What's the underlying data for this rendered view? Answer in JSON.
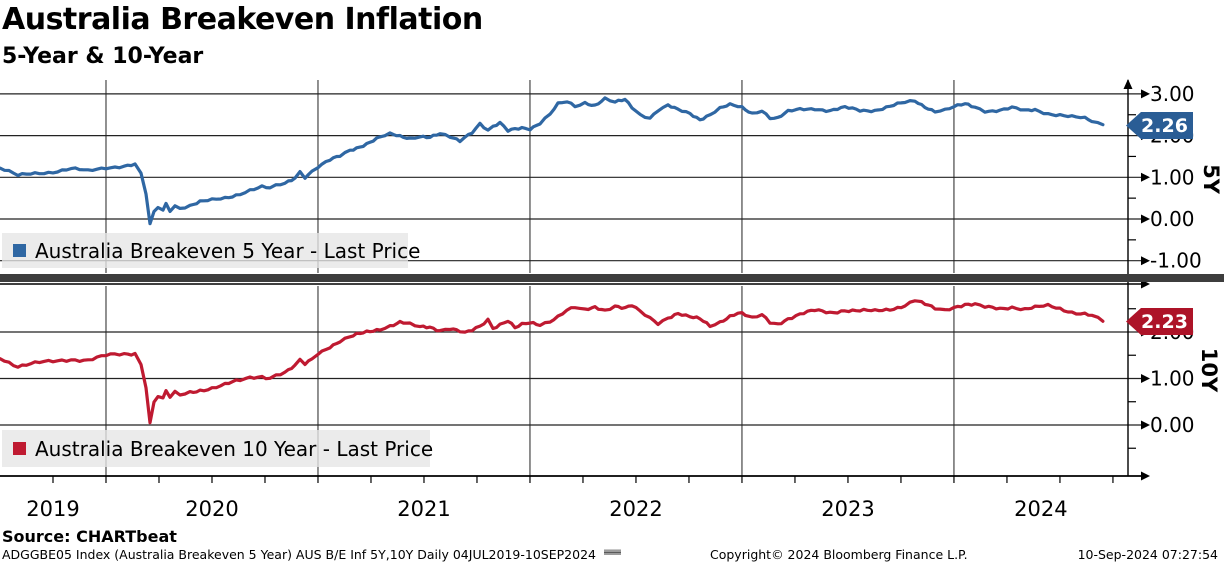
{
  "header": {
    "title": "Australia Breakeven Inflation",
    "subtitle": "5-Year & 10-Year"
  },
  "source_line": "Source: CHARTbeat",
  "footer": {
    "left": "ADGGBE05 Index (Australia Breakeven 5 Year) AUS B/E Inf 5Y,10Y  Daily 04JUL2019-10SEP2024",
    "center": "Copyright© 2024 Bloomberg Finance L.P.",
    "right": "10-Sep-2024 07:27:54"
  },
  "colors": {
    "blue_line": "#2f67a3",
    "blue_badge": "#2a5d95",
    "red_line": "#bf1a31",
    "red_badge": "#ad1328",
    "grid": "#222222",
    "axis": "#000000",
    "divider": "#3d3d3d",
    "legend_bg": "#e6e6e6"
  },
  "x_axis": {
    "xlim": [
      2019.5,
      2024.821
    ],
    "gridline_years": [
      2020,
      2021,
      2022,
      2023,
      2024
    ],
    "minor_step": 0.25,
    "labels": [
      {
        "text": "2019",
        "x": 2019.75
      },
      {
        "text": "2020",
        "x": 2020.5
      },
      {
        "text": "2021",
        "x": 2021.5
      },
      {
        "text": "2022",
        "x": 2022.5
      },
      {
        "text": "2023",
        "x": 2023.5
      },
      {
        "text": "2024",
        "x": 2024.41
      }
    ]
  },
  "chart_data": [
    {
      "type": "line",
      "panel_label": "5Y",
      "legend": "Australia Breakeven 5 Year - Last Price",
      "last_price": "2.26",
      "line_color": "#2f67a3",
      "badge_color": "#2a5d95",
      "ylim": [
        -1.295,
        3.333
      ],
      "ymajor": [
        3,
        2,
        1,
        0,
        -1
      ],
      "ytick_labels": [
        "3.00",
        "2.00",
        "1.00",
        "0.00",
        "-1.00"
      ],
      "yminor": [
        2.5,
        1.5,
        0.5,
        -0.5
      ],
      "points": [
        [
          2019.5,
          1.22
        ],
        [
          2019.5849,
          1.03
        ],
        [
          2019.6651,
          1.1
        ],
        [
          2019.75,
          1.14
        ],
        [
          2019.8349,
          1.2
        ],
        [
          2019.9151,
          1.14
        ],
        [
          2020.0,
          1.24
        ],
        [
          2020.0849,
          1.28
        ],
        [
          2020.1368,
          1.3
        ],
        [
          2020.1651,
          1.1
        ],
        [
          2020.1887,
          0.6
        ],
        [
          2020.2075,
          -0.15
        ],
        [
          2020.2264,
          0.15
        ],
        [
          2020.2453,
          0.28
        ],
        [
          2020.2689,
          0.2
        ],
        [
          2020.283,
          0.38
        ],
        [
          2020.3019,
          0.22
        ],
        [
          2020.3255,
          0.33
        ],
        [
          2020.3491,
          0.28
        ],
        [
          2020.3962,
          0.33
        ],
        [
          2020.4434,
          0.4
        ],
        [
          2020.5,
          0.44
        ],
        [
          2020.5613,
          0.5
        ],
        [
          2020.6321,
          0.62
        ],
        [
          2020.6792,
          0.7
        ],
        [
          2020.7358,
          0.76
        ],
        [
          2020.7736,
          0.72
        ],
        [
          2020.8019,
          0.78
        ],
        [
          2020.8443,
          0.85
        ],
        [
          2020.8915,
          1.0
        ],
        [
          2020.9151,
          1.15
        ],
        [
          2020.9387,
          1.02
        ],
        [
          2020.9717,
          1.15
        ],
        [
          2021.0,
          1.25
        ],
        [
          2021.0566,
          1.4
        ],
        [
          2021.1038,
          1.5
        ],
        [
          2021.1509,
          1.65
        ],
        [
          2021.1981,
          1.75
        ],
        [
          2021.2453,
          1.85
        ],
        [
          2021.2925,
          1.95
        ],
        [
          2021.3396,
          2.02
        ],
        [
          2021.3868,
          1.98
        ],
        [
          2021.434,
          1.95
        ],
        [
          2021.4811,
          2.0
        ],
        [
          2021.5283,
          1.96
        ],
        [
          2021.5755,
          2.02
        ],
        [
          2021.6226,
          1.95
        ],
        [
          2021.6698,
          1.88
        ],
        [
          2021.6934,
          1.98
        ],
        [
          2021.7264,
          2.1
        ],
        [
          2021.7642,
          2.3
        ],
        [
          2021.8019,
          2.12
        ],
        [
          2021.8255,
          2.2
        ],
        [
          2021.8585,
          2.28
        ],
        [
          2021.8962,
          2.1
        ],
        [
          2021.9292,
          2.16
        ],
        [
          2021.9623,
          2.2
        ],
        [
          2022.0,
          2.18
        ],
        [
          2022.0472,
          2.3
        ],
        [
          2022.0943,
          2.5
        ],
        [
          2022.1321,
          2.74
        ],
        [
          2022.1745,
          2.8
        ],
        [
          2022.2123,
          2.7
        ],
        [
          2022.2594,
          2.8
        ],
        [
          2022.3066,
          2.74
        ],
        [
          2022.3538,
          2.88
        ],
        [
          2022.4009,
          2.78
        ],
        [
          2022.4481,
          2.85
        ],
        [
          2022.4811,
          2.68
        ],
        [
          2022.5189,
          2.52
        ],
        [
          2022.566,
          2.44
        ],
        [
          2022.6038,
          2.62
        ],
        [
          2022.6509,
          2.72
        ],
        [
          2022.6981,
          2.6
        ],
        [
          2022.7547,
          2.52
        ],
        [
          2022.8019,
          2.4
        ],
        [
          2022.8491,
          2.52
        ],
        [
          2022.8962,
          2.66
        ],
        [
          2022.9434,
          2.72
        ],
        [
          2022.9811,
          2.68
        ],
        [
          2023.0,
          2.66
        ],
        [
          2023.0472,
          2.54
        ],
        [
          2023.0943,
          2.62
        ],
        [
          2023.1321,
          2.44
        ],
        [
          2023.1698,
          2.42
        ],
        [
          2023.217,
          2.56
        ],
        [
          2023.2736,
          2.62
        ],
        [
          2023.3443,
          2.66
        ],
        [
          2023.4151,
          2.6
        ],
        [
          2023.4858,
          2.66
        ],
        [
          2023.5566,
          2.6
        ],
        [
          2023.6274,
          2.62
        ],
        [
          2023.6981,
          2.7
        ],
        [
          2023.7689,
          2.78
        ],
        [
          2023.816,
          2.82
        ],
        [
          2023.8632,
          2.7
        ],
        [
          2023.9104,
          2.6
        ],
        [
          2023.9575,
          2.62
        ],
        [
          2024.0,
          2.68
        ],
        [
          2024.0519,
          2.74
        ],
        [
          2024.0991,
          2.68
        ],
        [
          2024.1462,
          2.6
        ],
        [
          2024.217,
          2.62
        ],
        [
          2024.2736,
          2.66
        ],
        [
          2024.3349,
          2.58
        ],
        [
          2024.3821,
          2.62
        ],
        [
          2024.4434,
          2.54
        ],
        [
          2024.5,
          2.5
        ],
        [
          2024.5566,
          2.44
        ],
        [
          2024.6179,
          2.4
        ],
        [
          2024.6509,
          2.34
        ],
        [
          2024.6792,
          2.3
        ],
        [
          2024.7028,
          2.26
        ]
      ]
    },
    {
      "type": "line",
      "panel_label": "10Y",
      "legend": "Australia Breakeven 10 Year - Last Price",
      "last_price": "2.23",
      "line_color": "#bf1a31",
      "badge_color": "#ad1328",
      "ylim": [
        -1.097,
        3.032
      ],
      "ymajor": [
        2,
        1,
        0
      ],
      "ytick_labels": [
        "2.00",
        "1.00",
        "0.00"
      ],
      "yminor": [
        2.5,
        1.5,
        0.5,
        -0.5
      ],
      "points": [
        [
          2019.5,
          1.45
        ],
        [
          2019.5849,
          1.27
        ],
        [
          2019.6651,
          1.32
        ],
        [
          2019.75,
          1.36
        ],
        [
          2019.8349,
          1.42
        ],
        [
          2019.9151,
          1.4
        ],
        [
          2020.0,
          1.48
        ],
        [
          2020.0849,
          1.52
        ],
        [
          2020.1368,
          1.55
        ],
        [
          2020.1651,
          1.3
        ],
        [
          2020.1887,
          0.8
        ],
        [
          2020.2075,
          0.05
        ],
        [
          2020.2264,
          0.5
        ],
        [
          2020.2453,
          0.62
        ],
        [
          2020.2689,
          0.55
        ],
        [
          2020.283,
          0.72
        ],
        [
          2020.3019,
          0.58
        ],
        [
          2020.3255,
          0.68
        ],
        [
          2020.3491,
          0.63
        ],
        [
          2020.3962,
          0.7
        ],
        [
          2020.4434,
          0.76
        ],
        [
          2020.5,
          0.8
        ],
        [
          2020.5613,
          0.86
        ],
        [
          2020.6321,
          0.95
        ],
        [
          2020.6792,
          1.02
        ],
        [
          2020.7358,
          1.06
        ],
        [
          2020.7736,
          1.02
        ],
        [
          2020.8019,
          1.08
        ],
        [
          2020.8443,
          1.12
        ],
        [
          2020.8915,
          1.25
        ],
        [
          2020.9151,
          1.38
        ],
        [
          2020.9387,
          1.3
        ],
        [
          2020.9717,
          1.42
        ],
        [
          2021.0,
          1.55
        ],
        [
          2021.0566,
          1.7
        ],
        [
          2021.1038,
          1.8
        ],
        [
          2021.1509,
          1.88
        ],
        [
          2021.1981,
          1.95
        ],
        [
          2021.2453,
          2.02
        ],
        [
          2021.2925,
          2.08
        ],
        [
          2021.3396,
          2.14
        ],
        [
          2021.3868,
          2.2
        ],
        [
          2021.434,
          2.15
        ],
        [
          2021.4811,
          2.1
        ],
        [
          2021.5283,
          2.12
        ],
        [
          2021.5755,
          2.05
        ],
        [
          2021.6226,
          2.08
        ],
        [
          2021.6698,
          2.0
        ],
        [
          2021.6934,
          1.96
        ],
        [
          2021.7264,
          2.02
        ],
        [
          2021.7642,
          2.12
        ],
        [
          2021.8019,
          2.28
        ],
        [
          2021.8255,
          2.1
        ],
        [
          2021.8585,
          2.18
        ],
        [
          2021.8962,
          2.25
        ],
        [
          2021.9292,
          2.08
        ],
        [
          2021.9623,
          2.14
        ],
        [
          2022.0,
          2.18
        ],
        [
          2022.0472,
          2.16
        ],
        [
          2022.0943,
          2.25
        ],
        [
          2022.1321,
          2.35
        ],
        [
          2022.1745,
          2.48
        ],
        [
          2022.2123,
          2.52
        ],
        [
          2022.2594,
          2.45
        ],
        [
          2022.3066,
          2.52
        ],
        [
          2022.3538,
          2.48
        ],
        [
          2022.4009,
          2.58
        ],
        [
          2022.4481,
          2.52
        ],
        [
          2022.4811,
          2.56
        ],
        [
          2022.5189,
          2.42
        ],
        [
          2022.566,
          2.28
        ],
        [
          2022.6038,
          2.18
        ],
        [
          2022.6509,
          2.32
        ],
        [
          2022.6981,
          2.42
        ],
        [
          2022.7547,
          2.32
        ],
        [
          2022.8019,
          2.26
        ],
        [
          2022.8491,
          2.12
        ],
        [
          2022.8962,
          2.22
        ],
        [
          2022.9434,
          2.36
        ],
        [
          2022.9811,
          2.42
        ],
        [
          2023.0,
          2.4
        ],
        [
          2023.0472,
          2.28
        ],
        [
          2023.0943,
          2.35
        ],
        [
          2023.1321,
          2.2
        ],
        [
          2023.1698,
          2.18
        ],
        [
          2023.217,
          2.3
        ],
        [
          2023.2736,
          2.38
        ],
        [
          2023.3443,
          2.45
        ],
        [
          2023.4151,
          2.42
        ],
        [
          2023.4858,
          2.48
        ],
        [
          2023.5566,
          2.45
        ],
        [
          2023.6274,
          2.44
        ],
        [
          2023.6981,
          2.5
        ],
        [
          2023.7689,
          2.58
        ],
        [
          2023.816,
          2.68
        ],
        [
          2023.8632,
          2.58
        ],
        [
          2023.9104,
          2.5
        ],
        [
          2023.9575,
          2.48
        ],
        [
          2024.0,
          2.55
        ],
        [
          2024.0519,
          2.6
        ],
        [
          2024.0991,
          2.58
        ],
        [
          2024.1462,
          2.52
        ],
        [
          2024.217,
          2.5
        ],
        [
          2024.2736,
          2.55
        ],
        [
          2024.3349,
          2.5
        ],
        [
          2024.3821,
          2.52
        ],
        [
          2024.4434,
          2.55
        ],
        [
          2024.5,
          2.5
        ],
        [
          2024.5566,
          2.44
        ],
        [
          2024.6179,
          2.4
        ],
        [
          2024.6509,
          2.35
        ],
        [
          2024.6792,
          2.28
        ],
        [
          2024.7028,
          2.23
        ]
      ]
    }
  ]
}
